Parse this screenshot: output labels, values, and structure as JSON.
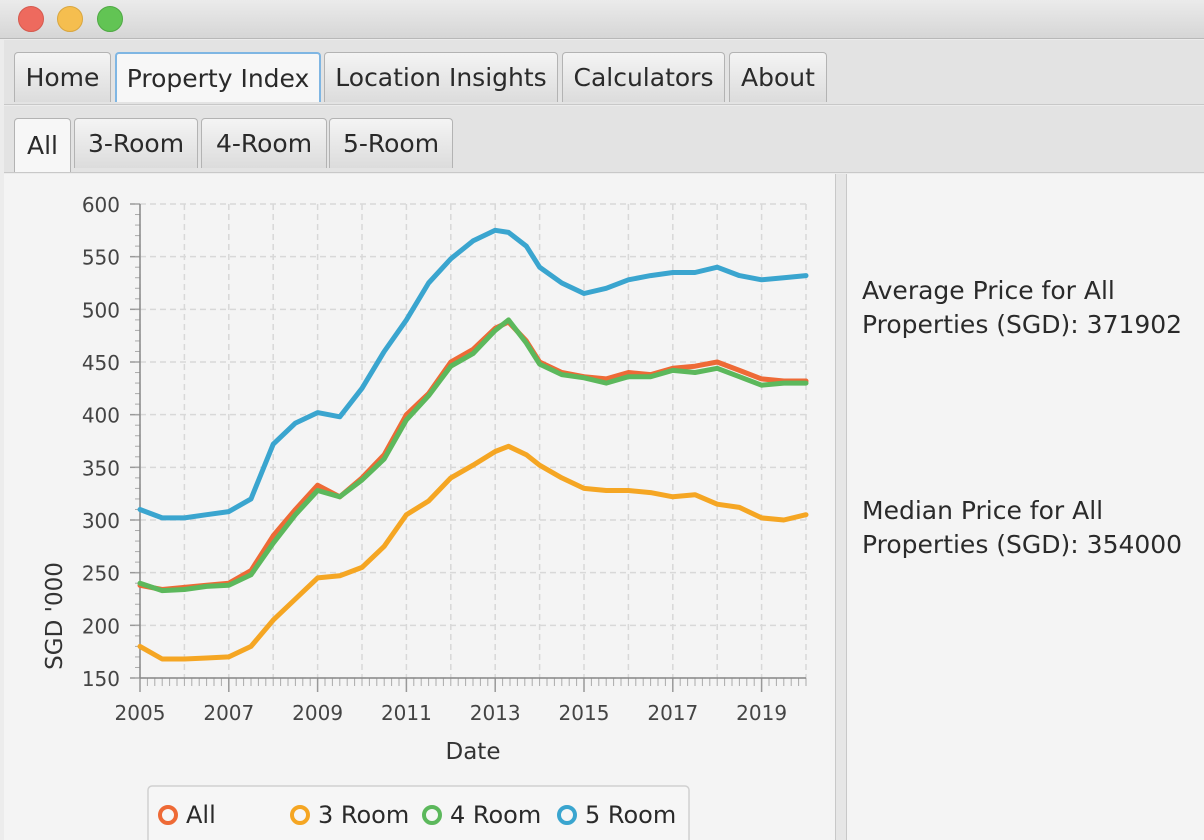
{
  "window": {
    "controls": [
      "close",
      "minimize",
      "maximize"
    ]
  },
  "main_tabs": [
    {
      "label": "Home",
      "selected": false
    },
    {
      "label": "Property Index",
      "selected": true
    },
    {
      "label": "Location Insights",
      "selected": false
    },
    {
      "label": "Calculators",
      "selected": false
    },
    {
      "label": "About",
      "selected": false
    }
  ],
  "sub_tabs": [
    {
      "label": "All",
      "selected": true
    },
    {
      "label": "3-Room",
      "selected": false
    },
    {
      "label": "4-Room",
      "selected": false
    },
    {
      "label": "5-Room",
      "selected": false
    }
  ],
  "info": {
    "average_text": "Average Price for All Properties (SGD): 371902",
    "median_text": "Median Price for All Properties (SGD): 354000"
  },
  "chart_data": {
    "type": "line",
    "xlabel": "Date",
    "ylabel": "SGD '000",
    "xlim": [
      2005,
      2020
    ],
    "ylim": [
      150,
      600
    ],
    "x_ticks": [
      2005,
      2007,
      2009,
      2011,
      2013,
      2015,
      2017,
      2019
    ],
    "y_ticks": [
      150,
      200,
      250,
      300,
      350,
      400,
      450,
      500,
      550,
      600
    ],
    "grid": true,
    "legend_position": "bottom",
    "series": [
      {
        "name": "All",
        "color": "#ee6a36",
        "x": [
          2005,
          2005.5,
          2006,
          2006.5,
          2007,
          2007.5,
          2008,
          2008.5,
          2009,
          2009.5,
          2010,
          2010.5,
          2011,
          2011.5,
          2012,
          2012.5,
          2013,
          2013.3,
          2013.7,
          2014,
          2014.5,
          2015,
          2015.5,
          2016,
          2016.5,
          2017,
          2017.5,
          2018,
          2018.5,
          2019,
          2019.5,
          2020
        ],
        "y": [
          238,
          234,
          236,
          238,
          240,
          252,
          285,
          310,
          333,
          322,
          340,
          362,
          400,
          420,
          450,
          462,
          482,
          488,
          470,
          450,
          440,
          436,
          434,
          440,
          438,
          444,
          446,
          450,
          442,
          434,
          432,
          432
        ]
      },
      {
        "name": "3 Room",
        "color": "#f5a623",
        "x": [
          2005,
          2005.5,
          2006,
          2006.5,
          2007,
          2007.5,
          2008,
          2008.5,
          2009,
          2009.5,
          2010,
          2010.5,
          2011,
          2011.5,
          2012,
          2012.5,
          2013,
          2013.3,
          2013.7,
          2014,
          2014.5,
          2015,
          2015.5,
          2016,
          2016.5,
          2017,
          2017.5,
          2018,
          2018.5,
          2019,
          2019.5,
          2020
        ],
        "y": [
          180,
          168,
          168,
          169,
          170,
          180,
          205,
          225,
          245,
          247,
          255,
          275,
          305,
          318,
          340,
          352,
          365,
          370,
          362,
          352,
          340,
          330,
          328,
          328,
          326,
          322,
          324,
          315,
          312,
          302,
          300,
          305
        ]
      },
      {
        "name": "4 Room",
        "color": "#5cb85c",
        "x": [
          2005,
          2005.5,
          2006,
          2006.5,
          2007,
          2007.5,
          2008,
          2008.5,
          2009,
          2009.5,
          2010,
          2010.5,
          2011,
          2011.5,
          2012,
          2012.5,
          2013,
          2013.3,
          2013.7,
          2014,
          2014.5,
          2015,
          2015.5,
          2016,
          2016.5,
          2017,
          2017.5,
          2018,
          2018.5,
          2019,
          2019.5,
          2020
        ],
        "y": [
          240,
          233,
          234,
          237,
          238,
          248,
          278,
          305,
          328,
          322,
          338,
          358,
          395,
          418,
          446,
          458,
          480,
          490,
          468,
          448,
          438,
          435,
          430,
          436,
          436,
          442,
          440,
          444,
          436,
          428,
          430,
          430
        ]
      },
      {
        "name": "5 Room",
        "color": "#3aa5cf",
        "x": [
          2005,
          2005.5,
          2006,
          2006.5,
          2007,
          2007.5,
          2008,
          2008.5,
          2009,
          2009.5,
          2010,
          2010.5,
          2011,
          2011.5,
          2012,
          2012.5,
          2013,
          2013.3,
          2013.7,
          2014,
          2014.5,
          2015,
          2015.5,
          2016,
          2016.5,
          2017,
          2017.5,
          2018,
          2018.5,
          2019,
          2019.5,
          2020
        ],
        "y": [
          310,
          302,
          302,
          305,
          308,
          320,
          372,
          392,
          402,
          398,
          425,
          460,
          490,
          525,
          548,
          565,
          575,
          573,
          560,
          540,
          525,
          515,
          520,
          528,
          532,
          535,
          535,
          540,
          532,
          528,
          530,
          532
        ]
      }
    ]
  }
}
